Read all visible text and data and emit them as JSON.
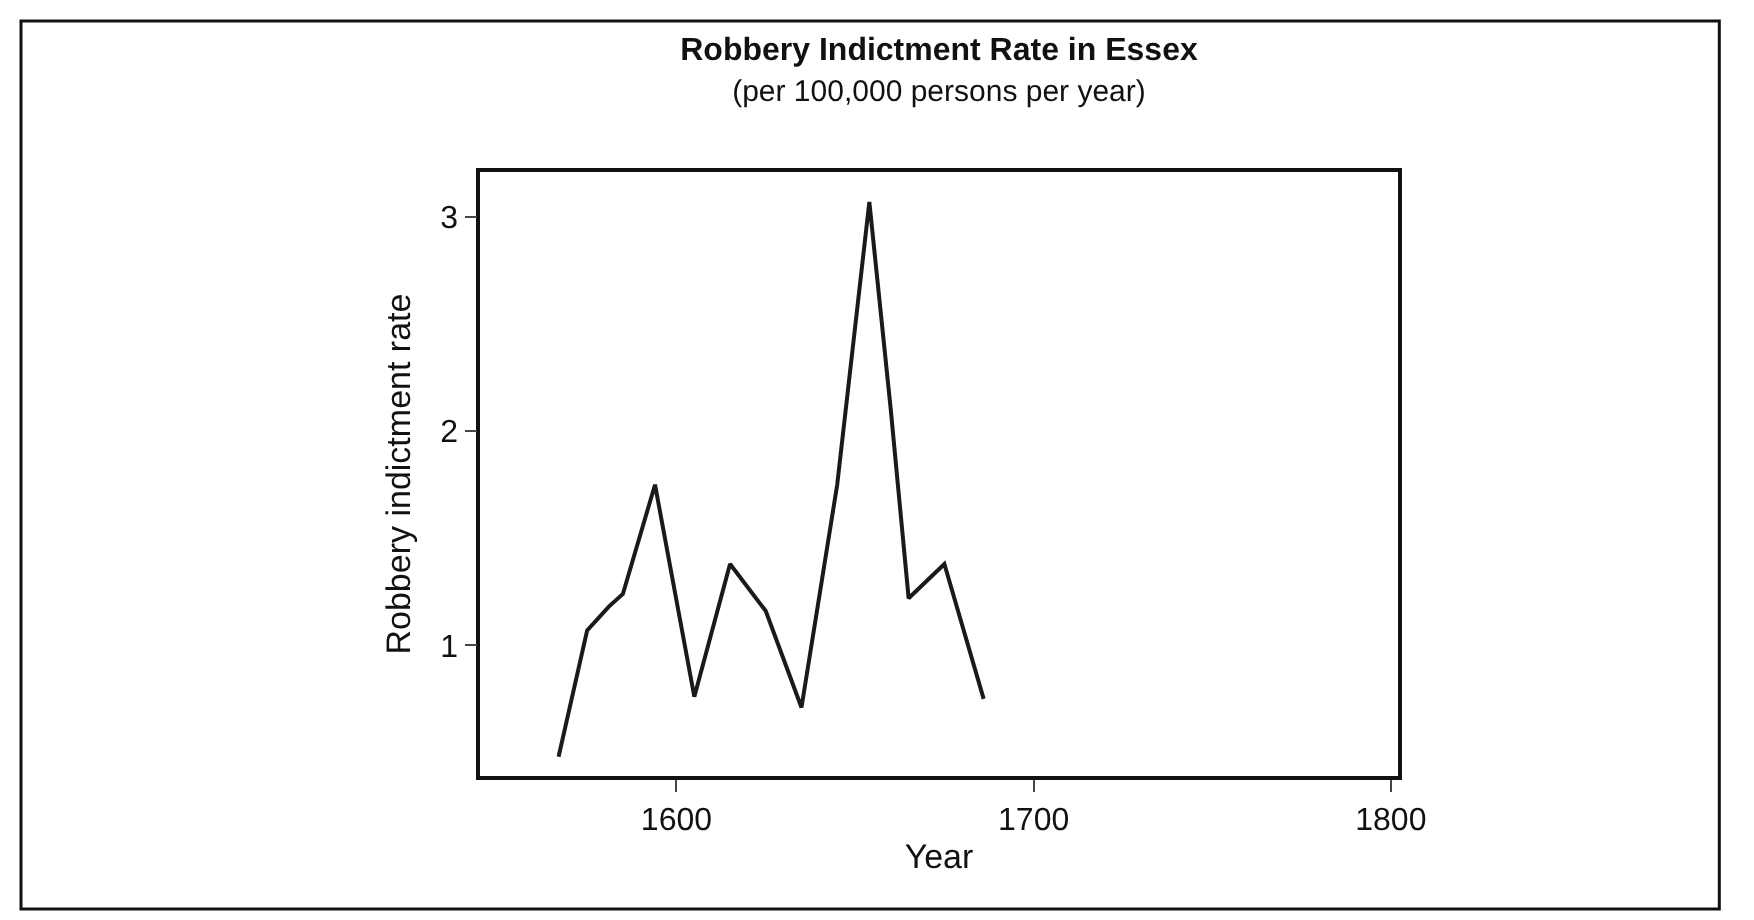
{
  "chart_data": {
    "type": "line",
    "title": "Robbery Indictment Rate in Essex",
    "subtitle": "(per 100,000 persons per year)",
    "xlabel": "Year",
    "ylabel": "Robbery indictment rate",
    "x": [
      1567,
      1575,
      1581,
      1585,
      1594,
      1605,
      1615,
      1625,
      1635,
      1645,
      1654,
      1660,
      1665,
      1675,
      1686
    ],
    "series": [
      {
        "color": "#1a1a1a",
        "values": [
          0.48,
          1.07,
          1.18,
          1.24,
          1.75,
          0.76,
          1.38,
          1.16,
          0.71,
          1.75,
          3.07,
          2.1,
          1.22,
          1.38,
          0.75
        ]
      }
    ],
    "xlim": [
      1545,
      1802
    ],
    "xticks": [
      1600,
      1700,
      1800
    ],
    "ylim": [
      0.39,
      3.21
    ],
    "yticks": [
      1,
      2,
      3
    ],
    "grid": false,
    "marker": "none",
    "line_style": "solid"
  }
}
